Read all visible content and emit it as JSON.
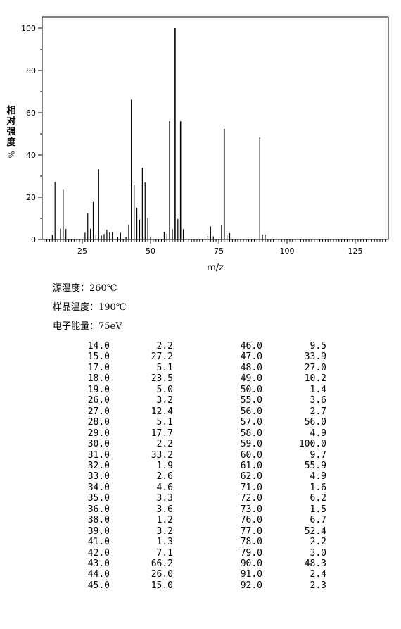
{
  "chart_data": {
    "type": "bar",
    "title": "",
    "xlabel": "m/z",
    "ylabel": "相对强度",
    "ylabel_unit": "%",
    "xlim": [
      10,
      137
    ],
    "ylim": [
      0,
      100
    ],
    "xticks": [
      25,
      50,
      75,
      100,
      125
    ],
    "yticks": [
      0,
      20,
      40,
      60,
      80,
      100
    ],
    "grid": false,
    "x": [
      14.0,
      15.0,
      17.0,
      18.0,
      19.0,
      26.0,
      27.0,
      28.0,
      29.0,
      30.0,
      31.0,
      32.0,
      33.0,
      34.0,
      35.0,
      36.0,
      38.0,
      39.0,
      41.0,
      42.0,
      43.0,
      44.0,
      45.0,
      46.0,
      47.0,
      48.0,
      49.0,
      50.0,
      55.0,
      56.0,
      57.0,
      58.0,
      59.0,
      60.0,
      61.0,
      62.0,
      71.0,
      72.0,
      73.0,
      76.0,
      77.0,
      78.0,
      79.0,
      90.0,
      91.0,
      92.0
    ],
    "values": [
      2.2,
      27.2,
      5.1,
      23.5,
      5.0,
      3.2,
      12.4,
      5.1,
      17.7,
      2.2,
      33.2,
      1.9,
      2.6,
      4.6,
      3.3,
      3.6,
      1.2,
      3.2,
      1.3,
      7.1,
      66.2,
      26.0,
      15.0,
      9.5,
      33.9,
      27.0,
      10.2,
      1.4,
      3.6,
      2.7,
      56.0,
      4.9,
      100.0,
      9.7,
      55.9,
      4.9,
      1.6,
      6.2,
      1.5,
      6.7,
      52.4,
      2.2,
      3.0,
      48.3,
      2.4,
      2.3
    ]
  },
  "conditions": {
    "source_temp": "源温度：260℃",
    "sample_temp": "样品温度：190℃",
    "electron_energy": "电子能量：75eV"
  },
  "peak_table": {
    "left": [
      [
        "14.0",
        "2.2"
      ],
      [
        "15.0",
        "27.2"
      ],
      [
        "17.0",
        "5.1"
      ],
      [
        "18.0",
        "23.5"
      ],
      [
        "19.0",
        "5.0"
      ],
      [
        "26.0",
        "3.2"
      ],
      [
        "27.0",
        "12.4"
      ],
      [
        "28.0",
        "5.1"
      ],
      [
        "29.0",
        "17.7"
      ],
      [
        "30.0",
        "2.2"
      ],
      [
        "31.0",
        "33.2"
      ],
      [
        "32.0",
        "1.9"
      ],
      [
        "33.0",
        "2.6"
      ],
      [
        "34.0",
        "4.6"
      ],
      [
        "35.0",
        "3.3"
      ],
      [
        "36.0",
        "3.6"
      ],
      [
        "38.0",
        "1.2"
      ],
      [
        "39.0",
        "3.2"
      ],
      [
        "41.0",
        "1.3"
      ],
      [
        "42.0",
        "7.1"
      ],
      [
        "43.0",
        "66.2"
      ],
      [
        "44.0",
        "26.0"
      ],
      [
        "45.0",
        "15.0"
      ]
    ],
    "right": [
      [
        "46.0",
        "9.5"
      ],
      [
        "47.0",
        "33.9"
      ],
      [
        "48.0",
        "27.0"
      ],
      [
        "49.0",
        "10.2"
      ],
      [
        "50.0",
        "1.4"
      ],
      [
        "55.0",
        "3.6"
      ],
      [
        "56.0",
        "2.7"
      ],
      [
        "57.0",
        "56.0"
      ],
      [
        "58.0",
        "4.9"
      ],
      [
        "59.0",
        "100.0"
      ],
      [
        "60.0",
        "9.7"
      ],
      [
        "61.0",
        "55.9"
      ],
      [
        "62.0",
        "4.9"
      ],
      [
        "71.0",
        "1.6"
      ],
      [
        "72.0",
        "6.2"
      ],
      [
        "73.0",
        "1.5"
      ],
      [
        "76.0",
        "6.7"
      ],
      [
        "77.0",
        "52.4"
      ],
      [
        "78.0",
        "2.2"
      ],
      [
        "79.0",
        "3.0"
      ],
      [
        "90.0",
        "48.3"
      ],
      [
        "91.0",
        "2.4"
      ],
      [
        "92.0",
        "2.3"
      ]
    ]
  }
}
